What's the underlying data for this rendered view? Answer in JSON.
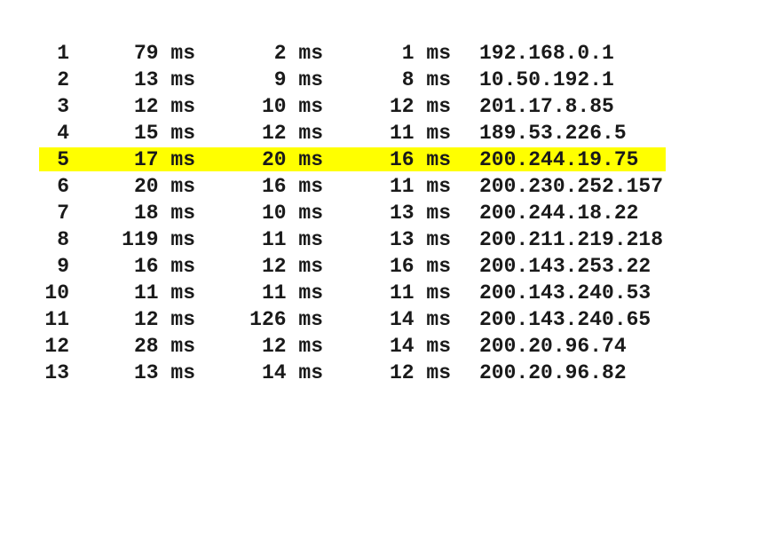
{
  "traceroute": {
    "highlighted_hop": "5",
    "highlight_color": "#ffff00",
    "rows": [
      {
        "hop": "1",
        "t1": "79 ms",
        "t2": "2 ms",
        "t3": "1 ms",
        "ip": "192.168.0.1"
      },
      {
        "hop": "2",
        "t1": "13 ms",
        "t2": "9 ms",
        "t3": "8 ms",
        "ip": "10.50.192.1"
      },
      {
        "hop": "3",
        "t1": "12 ms",
        "t2": "10 ms",
        "t3": "12 ms",
        "ip": "201.17.8.85"
      },
      {
        "hop": "4",
        "t1": "15 ms",
        "t2": "12 ms",
        "t3": "11 ms",
        "ip": "189.53.226.5"
      },
      {
        "hop": "5",
        "t1": "17 ms",
        "t2": "20 ms",
        "t3": "16 ms",
        "ip": "200.244.19.75"
      },
      {
        "hop": "6",
        "t1": "20 ms",
        "t2": "16 ms",
        "t3": "11 ms",
        "ip": "200.230.252.157"
      },
      {
        "hop": "7",
        "t1": "18 ms",
        "t2": "10 ms",
        "t3": "13 ms",
        "ip": "200.244.18.22"
      },
      {
        "hop": "8",
        "t1": "119 ms",
        "t2": "11 ms",
        "t3": "13 ms",
        "ip": "200.211.219.218"
      },
      {
        "hop": "9",
        "t1": "16 ms",
        "t2": "12 ms",
        "t3": "16 ms",
        "ip": "200.143.253.22"
      },
      {
        "hop": "10",
        "t1": "11 ms",
        "t2": "11 ms",
        "t3": "11 ms",
        "ip": "200.143.240.53"
      },
      {
        "hop": "11",
        "t1": "12 ms",
        "t2": "126 ms",
        "t3": "14 ms",
        "ip": "200.143.240.65"
      },
      {
        "hop": "12",
        "t1": "28 ms",
        "t2": "12 ms",
        "t3": "14 ms",
        "ip": "200.20.96.74"
      },
      {
        "hop": "13",
        "t1": "13 ms",
        "t2": "14 ms",
        "t3": "12 ms",
        "ip": "200.20.96.82"
      }
    ]
  }
}
